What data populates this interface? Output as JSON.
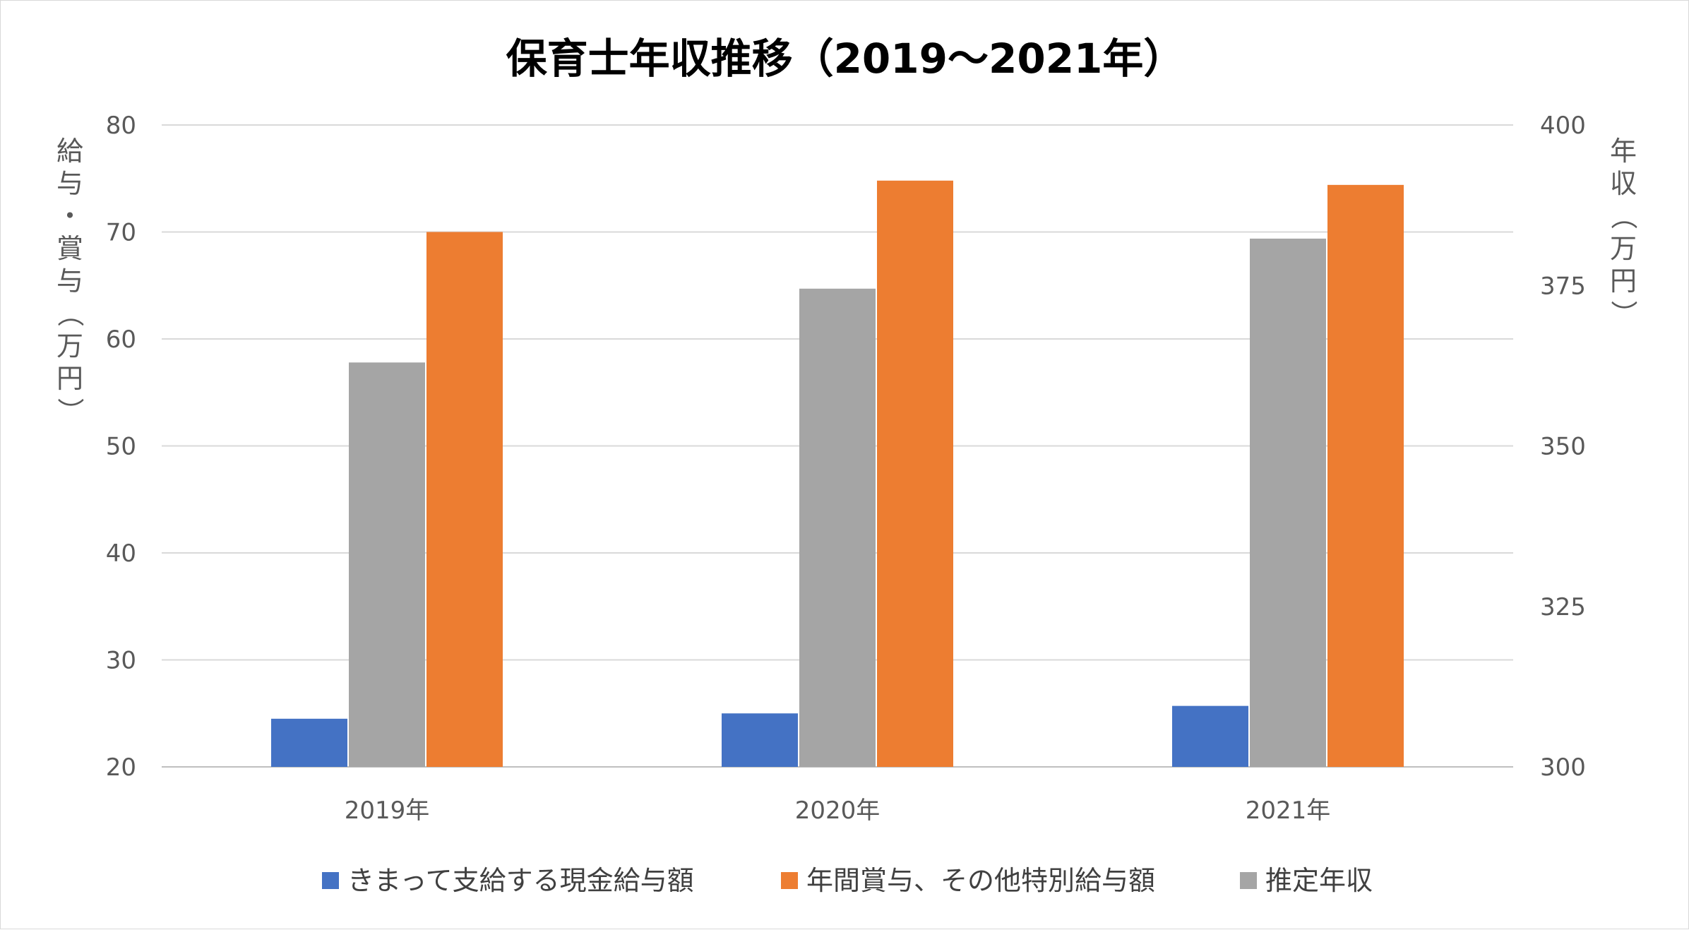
{
  "chart_data": {
    "type": "bar",
    "title": "保育士年収推移（2019～2021年）",
    "categories": [
      "2019年",
      "2020年",
      "2021年"
    ],
    "ylabel_left": "給与・賞与（万円）",
    "ylabel_right": "年収（万円）",
    "ylim_left": [
      20,
      80
    ],
    "ylim_right": [
      300,
      400
    ],
    "yticks_left": [
      "20",
      "30",
      "40",
      "50",
      "60",
      "70",
      "80"
    ],
    "yticks_right": [
      "300",
      "325",
      "350",
      "375",
      "400"
    ],
    "grid": true,
    "legend_position": "bottom",
    "series": [
      {
        "name": "きまって支給する現金給与額",
        "axis": "left",
        "color": "#4472C4",
        "values": [
          24.5,
          25.0,
          25.7
        ]
      },
      {
        "name": "推定年収",
        "axis": "right",
        "color": "#A5A5A5",
        "values": [
          363.0,
          374.5,
          382.3
        ]
      },
      {
        "name": "年間賞与、その他特別給与額",
        "axis": "left",
        "color": "#ED7D31",
        "values": [
          70.0,
          74.8,
          74.4
        ]
      }
    ],
    "legend_order": [
      0,
      2,
      1
    ]
  }
}
